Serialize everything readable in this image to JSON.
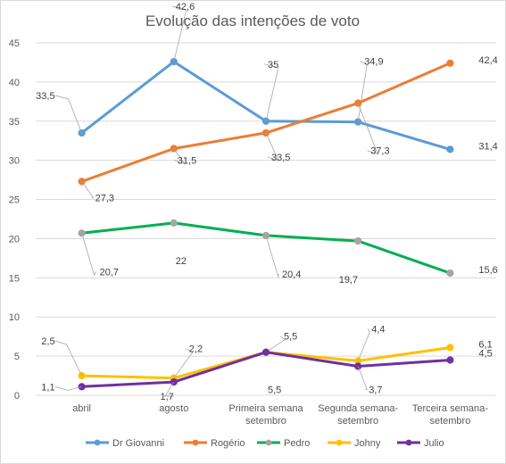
{
  "chart_data": {
    "type": "line",
    "title": "Evolução das intenções de voto",
    "xlabel": "",
    "ylabel": "",
    "categories": [
      [
        "abril"
      ],
      [
        "agosto"
      ],
      [
        "Primeira semana",
        "setembro"
      ],
      [
        "Segunda semana-",
        "setembro"
      ],
      [
        "Terceira semana-",
        "setembro"
      ]
    ],
    "ylim": [
      0,
      45
    ],
    "yticks": [
      0,
      5,
      10,
      15,
      20,
      25,
      30,
      35,
      40,
      45
    ],
    "grid": true,
    "legend_position": "bottom",
    "series": [
      {
        "name": "Dr Giovanni",
        "color": "#5b9bd5",
        "values": [
          33.5,
          42.6,
          35,
          34.9,
          31.4
        ],
        "labels": [
          "33,5",
          "42,6",
          "35",
          "34,9",
          "31,4"
        ]
      },
      {
        "name": "Rogério",
        "color": "#ed7d31",
        "values": [
          27.3,
          31.5,
          33.5,
          37.3,
          42.4
        ],
        "labels": [
          "27,3",
          "31,5",
          "33,5",
          "37,3",
          "42,4"
        ]
      },
      {
        "name": "Pedro",
        "color": "#00b050",
        "values": [
          20.7,
          22,
          20.4,
          19.7,
          15.6
        ],
        "labels": [
          "20,7",
          "22",
          "20,4",
          "19,7",
          "15,6"
        ]
      },
      {
        "name": "Johny",
        "color": "#ffc000",
        "values": [
          2.5,
          2.2,
          5.5,
          4.4,
          6.1
        ],
        "labels": [
          "2,5",
          "2,2",
          "5,5",
          "4,4",
          "6,1"
        ]
      },
      {
        "name": "Julio",
        "color": "#7030a0",
        "values": [
          1.1,
          1.7,
          5.5,
          3.7,
          4.5
        ],
        "labels": [
          "1,1",
          "1,7",
          "5,5",
          "3,7",
          "4,5"
        ]
      }
    ]
  }
}
